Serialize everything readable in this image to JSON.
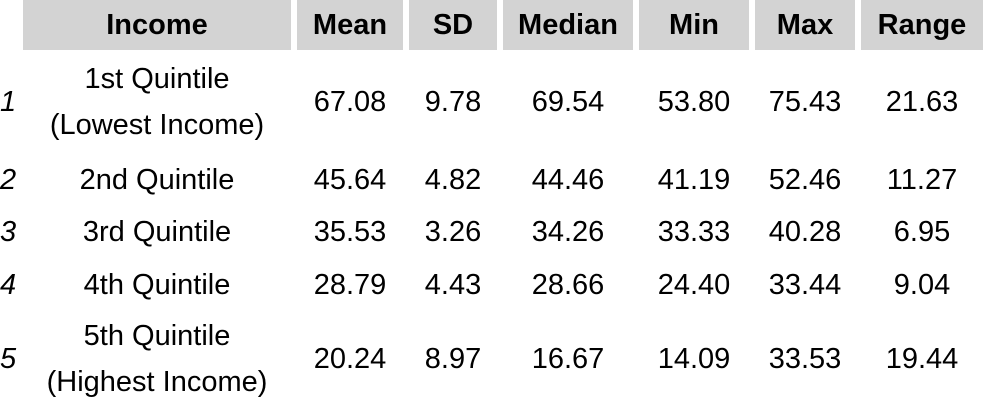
{
  "table": {
    "headers": {
      "income": "Income",
      "mean": "Mean",
      "sd": "SD",
      "median": "Median",
      "min": "Min",
      "max": "Max",
      "range": "Range"
    },
    "rows": [
      {
        "index": "1",
        "income_line1": "1st Quintile",
        "income_line2": "(Lowest Income)",
        "mean": "67.08",
        "sd": "9.78",
        "median": "69.54",
        "min": "53.80",
        "max": "75.43",
        "range": "21.63"
      },
      {
        "index": "2",
        "income_line1": "2nd Quintile",
        "mean": "45.64",
        "sd": "4.82",
        "median": "44.46",
        "min": "41.19",
        "max": "52.46",
        "range": "11.27"
      },
      {
        "index": "3",
        "income_line1": "3rd Quintile",
        "mean": "35.53",
        "sd": "3.26",
        "median": "34.26",
        "min": "33.33",
        "max": "40.28",
        "range": "6.95"
      },
      {
        "index": "4",
        "income_line1": "4th Quintile",
        "mean": "28.79",
        "sd": "4.43",
        "median": "28.66",
        "min": "24.40",
        "max": "33.44",
        "range": "9.04"
      },
      {
        "index": "5",
        "income_line1": "5th Quintile",
        "income_line2": "(Highest Income)",
        "mean": "20.24",
        "sd": "8.97",
        "median": "16.67",
        "min": "14.09",
        "max": "33.53",
        "range": "19.44"
      }
    ]
  },
  "colors": {
    "header_background": "#d3d3d3",
    "text": "#000000",
    "background": "#ffffff"
  }
}
